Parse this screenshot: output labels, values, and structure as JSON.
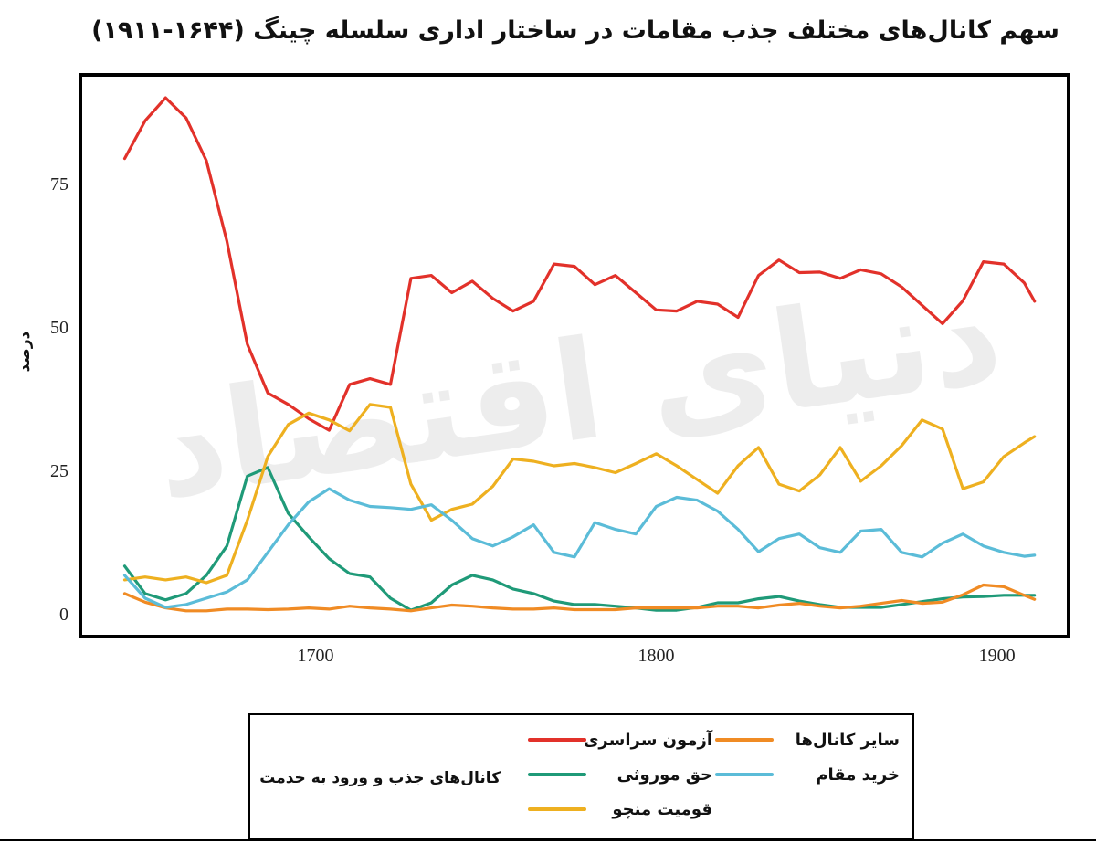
{
  "chart_data": {
    "type": "line",
    "title": "سهم کانال‌های مختلف جذب مقامات در ساختار اداری سلسله چینگ (۱۶۴۴-۱۹۱۱)",
    "y_label": "درصد",
    "watermark": "دنیای اقتصاد",
    "legend_title": "کانال‌های جذب و ورود به خدمت",
    "x": [
      1644,
      1650,
      1656,
      1662,
      1668,
      1674,
      1680,
      1686,
      1692,
      1698,
      1704,
      1710,
      1716,
      1722,
      1728,
      1734,
      1740,
      1746,
      1752,
      1758,
      1764,
      1770,
      1776,
      1782,
      1788,
      1794,
      1800,
      1806,
      1812,
      1818,
      1824,
      1830,
      1836,
      1842,
      1848,
      1854,
      1860,
      1866,
      1872,
      1878,
      1884,
      1890,
      1896,
      1902,
      1908,
      1911
    ],
    "xlim": [
      1631,
      1921
    ],
    "xticks": [
      1700,
      1800,
      1900
    ],
    "ylim": [
      -4,
      94
    ],
    "yticks": [
      0,
      25,
      50,
      75
    ],
    "series": [
      {
        "name": "آزمون سراسری",
        "color": "#e2312a",
        "values": [
          79.4,
          86,
          90,
          86.5,
          79,
          65,
          47,
          38.5,
          36.5,
          34,
          32,
          40,
          41,
          40,
          58.5,
          59,
          56,
          58,
          55,
          52.8,
          54.5,
          61,
          60.6,
          57.4,
          59,
          56,
          53,
          52.8,
          54.5,
          54,
          51.7,
          59,
          61.7,
          59.5,
          59.6,
          58.5,
          60,
          59.3,
          57,
          53.8,
          50.6,
          54.6,
          61.4,
          61,
          57.7,
          54.5
        ]
      },
      {
        "name": "حق موروثی",
        "color": "#1f9a78",
        "values": [
          8.3,
          3.5,
          2.4,
          3.5,
          6.7,
          11.8,
          24,
          25.5,
          17.5,
          13.4,
          9.6,
          7,
          6.4,
          2.7,
          0.6,
          1.9,
          5,
          6.7,
          5.9,
          4.3,
          3.5,
          2.2,
          1.6,
          1.6,
          1.3,
          1,
          0.6,
          0.6,
          1.1,
          1.9,
          1.9,
          2.6,
          3,
          2.2,
          1.6,
          1.1,
          1.1,
          1.1,
          1.6,
          2.1,
          2.6,
          2.9,
          3,
          3.2,
          3.2,
          3.2
        ]
      },
      {
        "name": "قومیت منچو",
        "color": "#eeb020",
        "values": [
          5.9,
          6.4,
          5.9,
          6.4,
          5.4,
          6.7,
          16.3,
          27.4,
          33,
          35,
          33.8,
          31.9,
          36.5,
          36,
          22.6,
          16.3,
          18.2,
          19.1,
          22.2,
          27,
          26.6,
          25.8,
          26.2,
          25.5,
          24.6,
          26.2,
          27.9,
          25.8,
          23.4,
          21,
          25.8,
          29,
          22.6,
          21.4,
          24.2,
          29,
          23.1,
          25.8,
          29.3,
          33.8,
          32.2,
          21.8,
          23,
          27.4,
          29.8,
          30.9
        ]
      },
      {
        "name": "سایر کانال‌ها",
        "color": "#f08b24",
        "values": [
          3.5,
          2,
          1,
          0.5,
          0.5,
          0.8,
          0.8,
          0.7,
          0.8,
          1,
          0.8,
          1.3,
          1,
          0.8,
          0.5,
          1,
          1.5,
          1.3,
          1,
          0.8,
          0.8,
          1,
          0.7,
          0.7,
          0.7,
          1,
          1,
          1,
          1,
          1.3,
          1.3,
          1,
          1.5,
          1.8,
          1.3,
          1,
          1.3,
          1.8,
          2.3,
          1.8,
          2,
          3.3,
          5,
          4.7,
          3.2,
          2.5
        ]
      },
      {
        "name": "خرید مقام",
        "color": "#5bbcd8",
        "values": [
          6.7,
          2.7,
          1.1,
          1.6,
          2.7,
          3.8,
          5.9,
          10.7,
          15.5,
          19.5,
          21.8,
          19.8,
          18.7,
          18.5,
          18.2,
          19,
          16.3,
          13.1,
          11.8,
          13.4,
          15.5,
          10.7,
          9.9,
          15.9,
          14.7,
          13.9,
          18.7,
          20.3,
          19.8,
          17.9,
          14.7,
          10.8,
          13.1,
          13.9,
          11.5,
          10.7,
          14.4,
          14.7,
          10.7,
          9.9,
          12.3,
          13.9,
          11.8,
          10.7,
          10,
          10.2
        ]
      }
    ]
  }
}
